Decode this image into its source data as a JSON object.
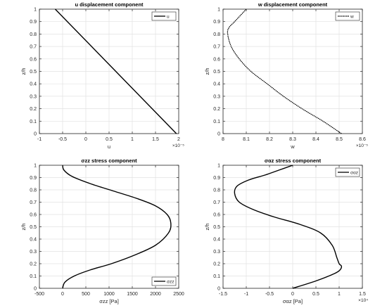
{
  "chart_data": [
    {
      "type": "line",
      "title": "u displacement component",
      "xlabel": "u",
      "ylabel": "z/h",
      "xlim": [
        -1,
        2
      ],
      "ylim": [
        0,
        1
      ],
      "x_multiplier": "×10⁻⁵",
      "x_ticks": [
        "-1",
        "-0.5",
        "0",
        "0.5",
        "1",
        "1.5",
        "2"
      ],
      "y_ticks": [
        "0",
        "0.1",
        "0.2",
        "0.3",
        "0.4",
        "0.5",
        "0.6",
        "0.7",
        "0.8",
        "0.9",
        "1"
      ],
      "grid": true,
      "legend": "top-right",
      "series": [
        {
          "name": "u",
          "dash": "solid",
          "x": [
            1.95,
            -0.66
          ],
          "y": [
            0,
            1
          ]
        }
      ]
    },
    {
      "type": "line",
      "title": "w displacement component",
      "xlabel": "w",
      "ylabel": "z/h",
      "xlim": [
        8,
        8.6
      ],
      "ylim": [
        0,
        1
      ],
      "x_multiplier": "×10⁻⁵",
      "x_ticks": [
        "8",
        "8.1",
        "8.2",
        "8.3",
        "8.4",
        "8.5",
        "8.6"
      ],
      "y_ticks": [
        "0",
        "0.1",
        "0.2",
        "0.3",
        "0.4",
        "0.5",
        "0.6",
        "0.7",
        "0.8",
        "0.9",
        "1"
      ],
      "grid": true,
      "legend": "top-right",
      "series": [
        {
          "name": "w",
          "dash": "dotted",
          "x": [
            8.51,
            8.43,
            8.34,
            8.26,
            8.19,
            8.12,
            8.07,
            8.035,
            8.02,
            8.025,
            8.05,
            8.1
          ],
          "y": [
            0,
            0.1,
            0.2,
            0.3,
            0.4,
            0.5,
            0.6,
            0.7,
            0.8,
            0.85,
            0.9,
            1
          ]
        }
      ]
    },
    {
      "type": "line",
      "title": "σzz stress component",
      "xlabel": "σzz [Pa]",
      "ylabel": "z/h",
      "xlim": [
        -500,
        2500
      ],
      "ylim": [
        0,
        1
      ],
      "x_ticks": [
        "-500",
        "0",
        "500",
        "1000",
        "1500",
        "2000",
        "2500"
      ],
      "y_ticks": [
        "0",
        "0.1",
        "0.2",
        "0.3",
        "0.4",
        "0.5",
        "0.6",
        "0.7",
        "0.8",
        "0.9",
        "1"
      ],
      "grid": true,
      "legend": "bottom-right",
      "series": [
        {
          "name": "σzz",
          "dash": "solid",
          "x": [
            0,
            50,
            250,
            600,
            1050,
            1550,
            2000,
            2280,
            2330,
            2250,
            2000,
            1600,
            1100,
            600,
            200,
            30,
            0
          ],
          "y": [
            0,
            0.05,
            0.1,
            0.15,
            0.2,
            0.27,
            0.35,
            0.45,
            0.53,
            0.6,
            0.67,
            0.73,
            0.79,
            0.85,
            0.91,
            0.96,
            1
          ]
        }
      ]
    },
    {
      "type": "line",
      "title": "σαz stress component",
      "xlabel": "σαz [Pa]",
      "ylabel": "z/h",
      "xlim": [
        -1.5,
        1.5
      ],
      "ylim": [
        0,
        1
      ],
      "x_multiplier": "×10⁴",
      "x_ticks": [
        "-1.5",
        "-1",
        "-0.5",
        "0",
        "0.5",
        "1",
        "1.5"
      ],
      "y_ticks": [
        "0",
        "0.1",
        "0.2",
        "0.3",
        "0.4",
        "0.5",
        "0.6",
        "0.7",
        "0.8",
        "0.9",
        "1"
      ],
      "grid": true,
      "legend": "top-right",
      "series": [
        {
          "name": "σαz",
          "dash": "solid",
          "x": [
            0,
            0.5,
            0.9,
            1.02,
            1.05,
            1.0,
            0.95,
            0.85,
            0.6,
            0.15,
            -0.4,
            -0.85,
            -1.15,
            -1.25,
            -1.2,
            -0.95,
            -0.6,
            -0.3,
            0
          ],
          "y": [
            0,
            0.06,
            0.12,
            0.15,
            0.18,
            0.2,
            0.25,
            0.35,
            0.45,
            0.52,
            0.58,
            0.64,
            0.7,
            0.77,
            0.83,
            0.88,
            0.92,
            0.96,
            1
          ]
        }
      ]
    }
  ]
}
